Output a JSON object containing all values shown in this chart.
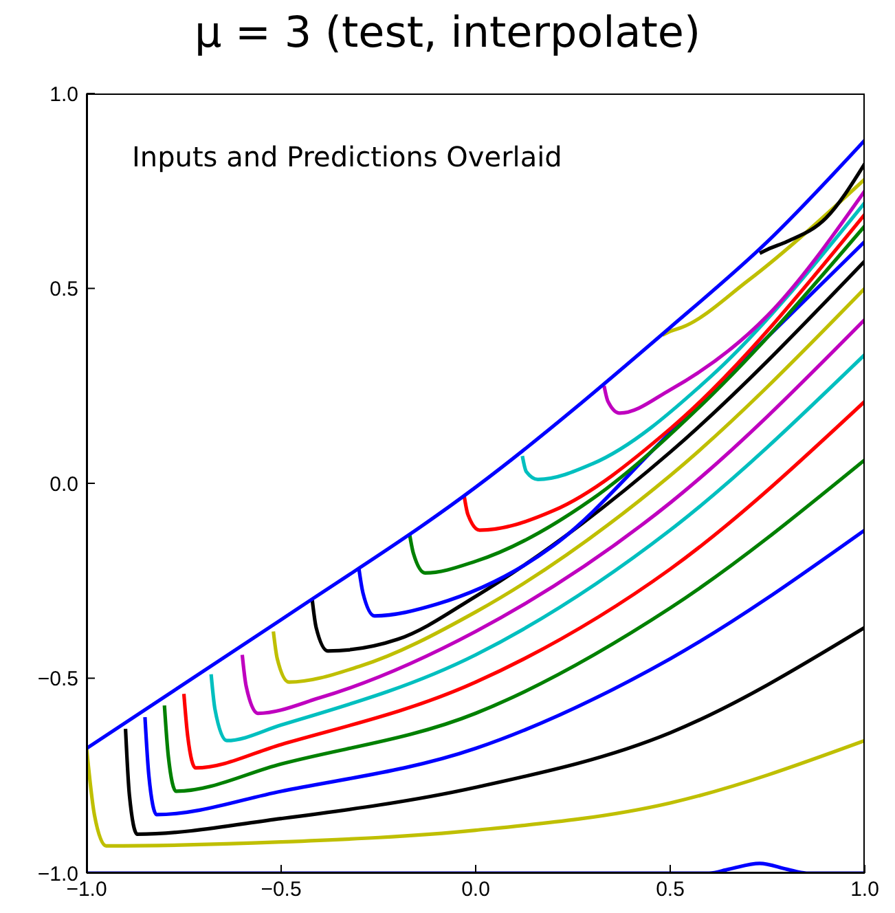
{
  "chart_data": {
    "type": "line",
    "title": "μ = 3 (test, interpolate)",
    "annotations": [
      "Inputs and Predictions Overlaid"
    ],
    "xlim": [
      -1,
      1
    ],
    "ylim": [
      -1,
      1
    ],
    "xticks": [
      {
        "value": -1,
        "label": "−1.0"
      },
      {
        "value": -0.5,
        "label": "−0.5"
      },
      {
        "value": 0,
        "label": "0.0"
      },
      0.5,
      {
        "value": 1,
        "label": "1.0"
      }
    ],
    "yticks": [
      {
        "value": -1,
        "label": "−1.0"
      },
      {
        "value": -0.5,
        "label": "−0.5"
      },
      {
        "value": 0,
        "label": "0.0"
      },
      0.5,
      {
        "value": 1,
        "label": "1.0"
      }
    ],
    "grid": false,
    "marker": "none",
    "line_style": "solid",
    "series": [
      {
        "color": "#bfbf00",
        "x": [
          -1,
          -0.98,
          -0.95,
          -0.5,
          0,
          0.5,
          1
        ],
        "values": [
          -0.68,
          -0.85,
          -0.93,
          -0.92,
          -0.89,
          -0.82,
          -0.66
        ]
      },
      {
        "color": "#000000",
        "x": [
          -0.9,
          -0.89,
          -0.87,
          -0.5,
          0,
          0.5,
          1
        ],
        "values": [
          -0.63,
          -0.8,
          -0.9,
          -0.86,
          -0.78,
          -0.64,
          -0.37
        ]
      },
      {
        "color": "#0000ff",
        "x": [
          -0.85,
          -0.84,
          -0.82,
          -0.5,
          0,
          0.5,
          1
        ],
        "values": [
          -0.6,
          -0.75,
          -0.85,
          -0.79,
          -0.68,
          -0.45,
          -0.12
        ]
      },
      {
        "color": "#008000",
        "x": [
          -0.8,
          -0.79,
          -0.77,
          -0.5,
          0,
          0.5,
          1
        ],
        "values": [
          -0.57,
          -0.7,
          -0.79,
          -0.72,
          -0.59,
          -0.32,
          0.06
        ]
      },
      {
        "color": "#ff0000",
        "x": [
          -0.75,
          -0.74,
          -0.72,
          -0.5,
          0,
          0.5,
          1
        ],
        "values": [
          -0.54,
          -0.65,
          -0.73,
          -0.67,
          -0.51,
          -0.22,
          0.21
        ]
      },
      {
        "color": "#00bfbf",
        "x": [
          -0.68,
          -0.67,
          -0.64,
          -0.5,
          0,
          0.5,
          1
        ],
        "values": [
          -0.49,
          -0.58,
          -0.66,
          -0.62,
          -0.44,
          -0.12,
          0.33
        ]
      },
      {
        "color": "#bf00bf",
        "x": [
          -0.6,
          -0.59,
          -0.56,
          -0.4,
          0,
          0.5,
          1
        ],
        "values": [
          -0.44,
          -0.52,
          -0.59,
          -0.55,
          -0.38,
          -0.05,
          0.42
        ]
      },
      {
        "color": "#bfbf00",
        "x": [
          -0.52,
          -0.51,
          -0.48,
          -0.3,
          0,
          0.5,
          1
        ],
        "values": [
          -0.38,
          -0.45,
          -0.51,
          -0.47,
          -0.33,
          0.02,
          0.5
        ]
      },
      {
        "color": "#000000",
        "x": [
          -0.42,
          -0.41,
          -0.38,
          -0.2,
          0,
          0.5,
          1
        ],
        "values": [
          -0.3,
          -0.37,
          -0.43,
          -0.4,
          -0.29,
          0.08,
          0.57
        ]
      },
      {
        "color": "#0000ff",
        "x": [
          -0.3,
          -0.29,
          -0.26,
          -0.1,
          0.2,
          0.5,
          1
        ],
        "values": [
          -0.22,
          -0.28,
          -0.34,
          -0.31,
          -0.16,
          0.13,
          0.62
        ]
      },
      {
        "color": "#008000",
        "x": [
          -0.17,
          -0.16,
          -0.13,
          0,
          0.3,
          0.6,
          1
        ],
        "values": [
          -0.13,
          -0.18,
          -0.23,
          -0.2,
          -0.04,
          0.22,
          0.66
        ]
      },
      {
        "color": "#ff0000",
        "x": [
          -0.03,
          -0.02,
          0.01,
          0.2,
          0.5,
          1
        ],
        "values": [
          -0.03,
          -0.08,
          -0.12,
          -0.07,
          0.14,
          0.69
        ]
      },
      {
        "color": "#00bfbf",
        "x": [
          0.12,
          0.13,
          0.16,
          0.3,
          0.6,
          1
        ],
        "values": [
          0.07,
          0.03,
          0.01,
          0.05,
          0.27,
          0.72
        ]
      },
      {
        "color": "#bf00bf",
        "x": [
          0.33,
          0.34,
          0.37,
          0.5,
          0.75,
          1
        ],
        "values": [
          0.25,
          0.21,
          0.18,
          0.24,
          0.43,
          0.75
        ]
      },
      {
        "color": "#bfbf00",
        "x": [
          0.48,
          0.5,
          0.53,
          0.7,
          1
        ],
        "values": [
          0.38,
          0.39,
          0.4,
          0.52,
          0.78
        ]
      },
      {
        "color": "#000000",
        "x": [
          0.73,
          0.75,
          0.8,
          0.9,
          1
        ],
        "values": [
          0.59,
          0.6,
          0.62,
          0.68,
          0.82
        ]
      },
      {
        "color": "#0000ff",
        "x": [
          -1,
          -0.5,
          0,
          0.5,
          0.75,
          1
        ],
        "values": [
          -0.68,
          -0.35,
          -0.01,
          0.4,
          0.62,
          0.88
        ]
      },
      {
        "color": "#0000ff",
        "x": [
          -1,
          0.6,
          0.65,
          0.73,
          0.8,
          0.85,
          1
        ],
        "values": [
          -1,
          -1,
          -0.99,
          -0.975,
          -0.99,
          -1,
          -1
        ]
      }
    ]
  }
}
